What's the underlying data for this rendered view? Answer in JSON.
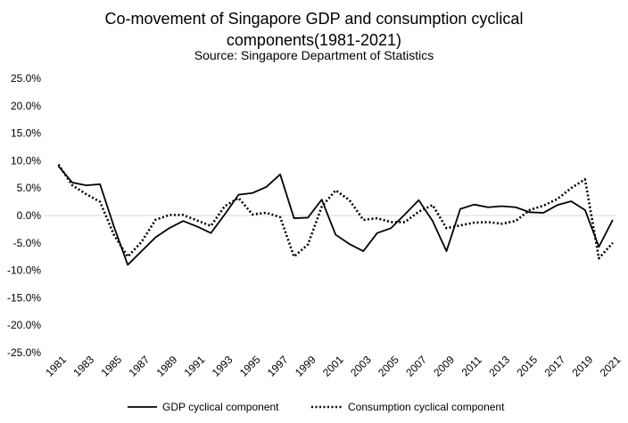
{
  "chart_data": {
    "type": "line",
    "title_lines": [
      "Co-movement of Singapore GDP and consumption cyclical",
      "components(1981-2021)"
    ],
    "subtitle": "Source: Singapore Department of Statistics",
    "xlabel": "",
    "ylabel": "",
    "x": [
      1981,
      1982,
      1983,
      1984,
      1985,
      1986,
      1987,
      1988,
      1989,
      1990,
      1991,
      1992,
      1993,
      1994,
      1995,
      1996,
      1997,
      1998,
      1999,
      2000,
      2001,
      2002,
      2003,
      2004,
      2005,
      2006,
      2007,
      2008,
      2009,
      2010,
      2011,
      2012,
      2013,
      2014,
      2015,
      2016,
      2017,
      2018,
      2019,
      2020,
      2021
    ],
    "x_tick_labels": [
      "1981",
      "1983",
      "1985",
      "1987",
      "1989",
      "1991",
      "1993",
      "1995",
      "1997",
      "1999",
      "2001",
      "2003",
      "2005",
      "2007",
      "2009",
      "2011",
      "2013",
      "2015",
      "2017",
      "2019",
      "2021"
    ],
    "x_tick_years": [
      1981,
      1983,
      1985,
      1987,
      1989,
      1991,
      1993,
      1995,
      1997,
      1999,
      2001,
      2003,
      2005,
      2007,
      2009,
      2011,
      2013,
      2015,
      2017,
      2019,
      2021
    ],
    "y_ticks": [
      25,
      20,
      15,
      10,
      5,
      0,
      -5,
      -10,
      -15,
      -20,
      -25
    ],
    "y_tick_labels": [
      "25.0%",
      "20.0%",
      "15.0%",
      "10.0%",
      "5.0%",
      "0.0%",
      "-5.0%",
      "-10.0%",
      "-15.0%",
      "-20.0%",
      "-25.0%"
    ],
    "ylim": [
      -25,
      25
    ],
    "xlim": [
      1980,
      2021.2
    ],
    "grid": false,
    "legend_position": "bottom",
    "series": [
      {
        "name": "GDP cyclical component",
        "style": "solid",
        "color": "#000000",
        "values": [
          9.0,
          6.0,
          5.5,
          5.7,
          -2.0,
          -9.0,
          -6.5,
          -4.0,
          -2.3,
          -1.0,
          -2.0,
          -3.2,
          0.2,
          3.8,
          4.1,
          5.2,
          7.5,
          -0.5,
          -0.4,
          2.9,
          -3.5,
          -5.2,
          -6.5,
          -3.2,
          -2.3,
          0.2,
          2.8,
          -1.0,
          -6.5,
          1.2,
          2.0,
          1.5,
          1.7,
          1.5,
          0.6,
          0.5,
          1.9,
          2.6,
          1.0,
          -5.7,
          -0.8
        ]
      },
      {
        "name": "Consumption cyclical component",
        "style": "dotted",
        "color": "#000000",
        "values": [
          9.3,
          5.5,
          3.9,
          2.5,
          -3.5,
          -7.5,
          -4.8,
          -0.8,
          0.1,
          0.1,
          -0.9,
          -1.9,
          1.7,
          3.2,
          0.2,
          0.5,
          -0.3,
          -7.5,
          -5.3,
          1.6,
          4.6,
          2.8,
          -0.8,
          -0.5,
          -1.2,
          -1.2,
          0.7,
          1.9,
          -2.3,
          -1.8,
          -1.3,
          -1.2,
          -1.5,
          -1.0,
          1.0,
          1.8,
          3.0,
          5.0,
          6.6,
          -7.8,
          -5.0
        ]
      }
    ]
  }
}
